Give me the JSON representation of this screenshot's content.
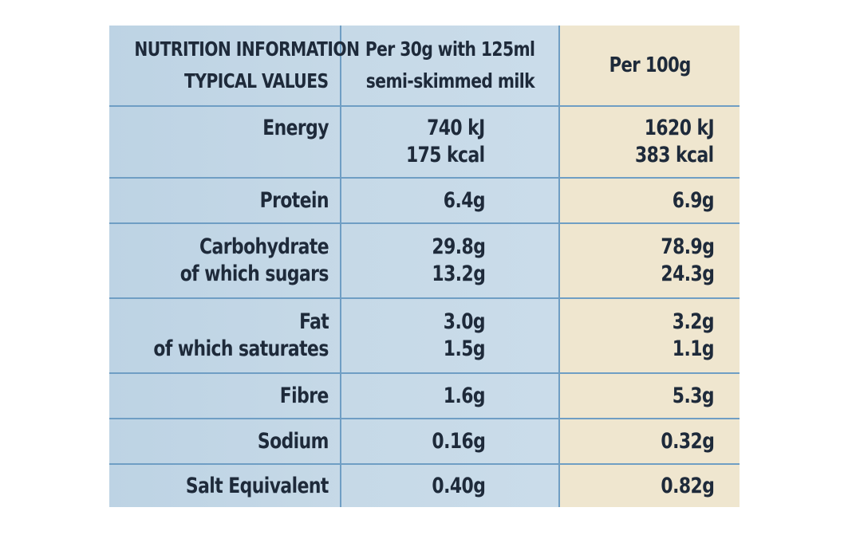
{
  "header": {
    "title_line1": "NUTRITION INFORMATION",
    "title_line2": "TYPICAL VALUES",
    "col2_line1": "Per 30g with 125ml",
    "col2_line2": "semi-skimmed milk",
    "col3": "Per 100g"
  },
  "rows": [
    {
      "label": [
        "Energy"
      ],
      "per_serving": [
        "740 kJ",
        "175 kcal"
      ],
      "per_100g": [
        "1620 kJ",
        "383 kcal"
      ]
    },
    {
      "label": [
        "Protein"
      ],
      "per_serving": [
        "6.4g"
      ],
      "per_100g": [
        "6.9g"
      ]
    },
    {
      "label": [
        "Carbohydrate",
        "of which sugars"
      ],
      "per_serving": [
        "29.8g",
        "13.2g"
      ],
      "per_100g": [
        "78.9g",
        "24.3g"
      ]
    },
    {
      "label": [
        "Fat",
        "of which saturates"
      ],
      "per_serving": [
        "3.0g",
        "1.5g"
      ],
      "per_100g": [
        "3.2g",
        "1.1g"
      ]
    },
    {
      "label": [
        "Fibre"
      ],
      "per_serving": [
        "1.6g"
      ],
      "per_100g": [
        "5.3g"
      ]
    },
    {
      "label": [
        "Sodium"
      ],
      "per_serving": [
        "0.16g"
      ],
      "per_100g": [
        "0.32g"
      ]
    },
    {
      "label": [
        "Salt Equivalent"
      ],
      "per_serving": [
        "0.40g"
      ],
      "per_100g": [
        "0.82g"
      ]
    }
  ]
}
